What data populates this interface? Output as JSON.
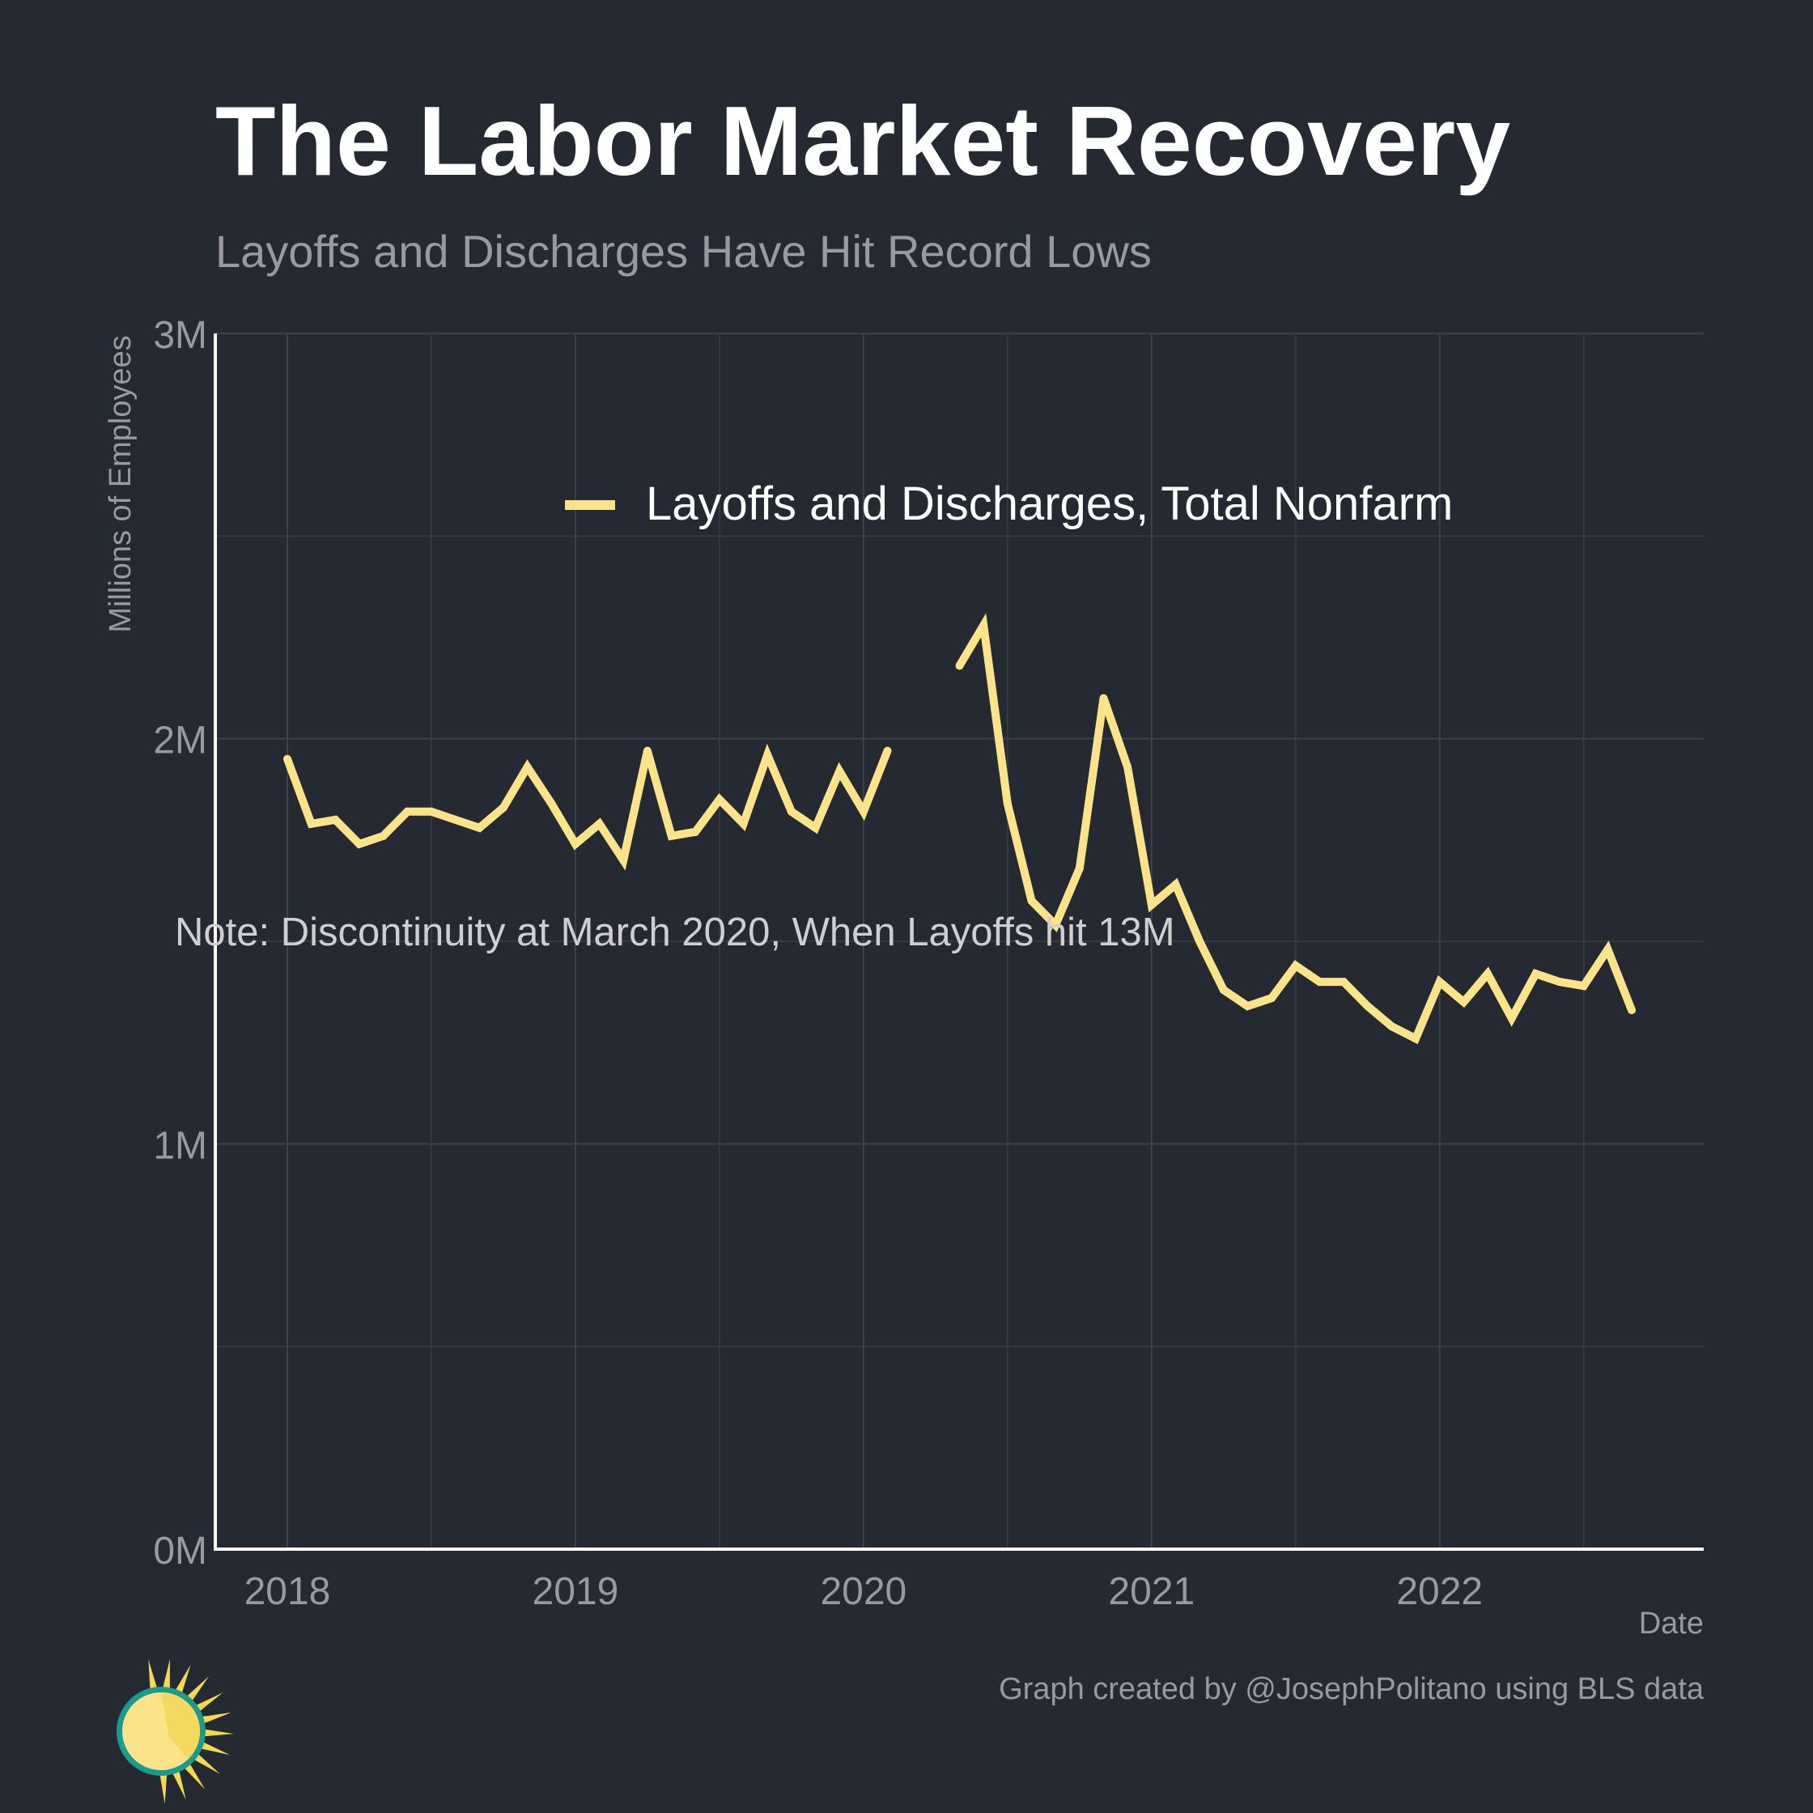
{
  "chart_data": {
    "type": "line",
    "title": "The Labor Market Recovery",
    "subtitle": "Layoffs and Discharges Have Hit Record Lows",
    "xlabel": "Date",
    "ylabel": "Millions of Employees",
    "ylim": [
      0,
      3
    ],
    "xlim": [
      "2017-10",
      "2022-12"
    ],
    "y_ticks": [
      {
        "value": 0,
        "label": "0M"
      },
      {
        "value": 1,
        "label": "1M"
      },
      {
        "value": 2,
        "label": "2M"
      },
      {
        "value": 3,
        "label": "3M"
      }
    ],
    "x_ticks": [
      {
        "value": "2018-01",
        "label": "2018"
      },
      {
        "value": "2019-01",
        "label": "2019"
      },
      {
        "value": "2020-01",
        "label": "2020"
      },
      {
        "value": "2021-01",
        "label": "2021"
      },
      {
        "value": "2022-01",
        "label": "2022"
      }
    ],
    "grid": true,
    "legend_position": "top-center",
    "annotation": "Note: Discontinuity at March 2020, When Layoffs hit 13M",
    "caption": "Graph created by @JosephPolitano using BLS data",
    "series": [
      {
        "name": "Layoffs and Discharges, Total Nonfarm",
        "color": "#fbe38a",
        "segments": [
          [
            {
              "x": "2018-01",
              "y": 1.95
            },
            {
              "x": "2018-02",
              "y": 1.79
            },
            {
              "x": "2018-03",
              "y": 1.8
            },
            {
              "x": "2018-04",
              "y": 1.74
            },
            {
              "x": "2018-05",
              "y": 1.76
            },
            {
              "x": "2018-06",
              "y": 1.82
            },
            {
              "x": "2018-07",
              "y": 1.82
            },
            {
              "x": "2018-08",
              "y": 1.8
            },
            {
              "x": "2018-09",
              "y": 1.78
            },
            {
              "x": "2018-10",
              "y": 1.83
            },
            {
              "x": "2018-11",
              "y": 1.93
            },
            {
              "x": "2018-12",
              "y": 1.84
            },
            {
              "x": "2019-01",
              "y": 1.74
            },
            {
              "x": "2019-02",
              "y": 1.79
            },
            {
              "x": "2019-03",
              "y": 1.7
            },
            {
              "x": "2019-04",
              "y": 1.97
            },
            {
              "x": "2019-05",
              "y": 1.76
            },
            {
              "x": "2019-06",
              "y": 1.77
            },
            {
              "x": "2019-07",
              "y": 1.85
            },
            {
              "x": "2019-08",
              "y": 1.79
            },
            {
              "x": "2019-09",
              "y": 1.96
            },
            {
              "x": "2019-10",
              "y": 1.82
            },
            {
              "x": "2019-11",
              "y": 1.78
            },
            {
              "x": "2019-12",
              "y": 1.92
            },
            {
              "x": "2020-01",
              "y": 1.82
            },
            {
              "x": "2020-02",
              "y": 1.97
            }
          ],
          [
            {
              "x": "2020-05",
              "y": 2.18
            },
            {
              "x": "2020-06",
              "y": 2.28
            },
            {
              "x": "2020-07",
              "y": 1.84
            },
            {
              "x": "2020-08",
              "y": 1.6
            },
            {
              "x": "2020-09",
              "y": 1.54
            },
            {
              "x": "2020-10",
              "y": 1.68
            },
            {
              "x": "2020-11",
              "y": 2.1
            },
            {
              "x": "2020-12",
              "y": 1.93
            },
            {
              "x": "2021-01",
              "y": 1.59
            },
            {
              "x": "2021-02",
              "y": 1.64
            },
            {
              "x": "2021-03",
              "y": 1.5
            },
            {
              "x": "2021-04",
              "y": 1.38
            },
            {
              "x": "2021-05",
              "y": 1.34
            },
            {
              "x": "2021-06",
              "y": 1.36
            },
            {
              "x": "2021-07",
              "y": 1.44
            },
            {
              "x": "2021-08",
              "y": 1.4
            },
            {
              "x": "2021-09",
              "y": 1.4
            },
            {
              "x": "2021-10",
              "y": 1.34
            },
            {
              "x": "2021-11",
              "y": 1.29
            },
            {
              "x": "2021-12",
              "y": 1.26
            },
            {
              "x": "2022-01",
              "y": 1.4
            },
            {
              "x": "2022-02",
              "y": 1.35
            },
            {
              "x": "2022-03",
              "y": 1.42
            },
            {
              "x": "2022-04",
              "y": 1.31
            },
            {
              "x": "2022-05",
              "y": 1.42
            },
            {
              "x": "2022-06",
              "y": 1.4
            },
            {
              "x": "2022-07",
              "y": 1.39
            },
            {
              "x": "2022-08",
              "y": 1.48
            },
            {
              "x": "2022-09",
              "y": 1.33
            }
          ]
        ]
      }
    ]
  },
  "logo": {
    "name": "sun-logo",
    "colors": {
      "ring": "#1a9b8c",
      "disc": "#fbe38a",
      "rays": "#f6d84e"
    }
  }
}
